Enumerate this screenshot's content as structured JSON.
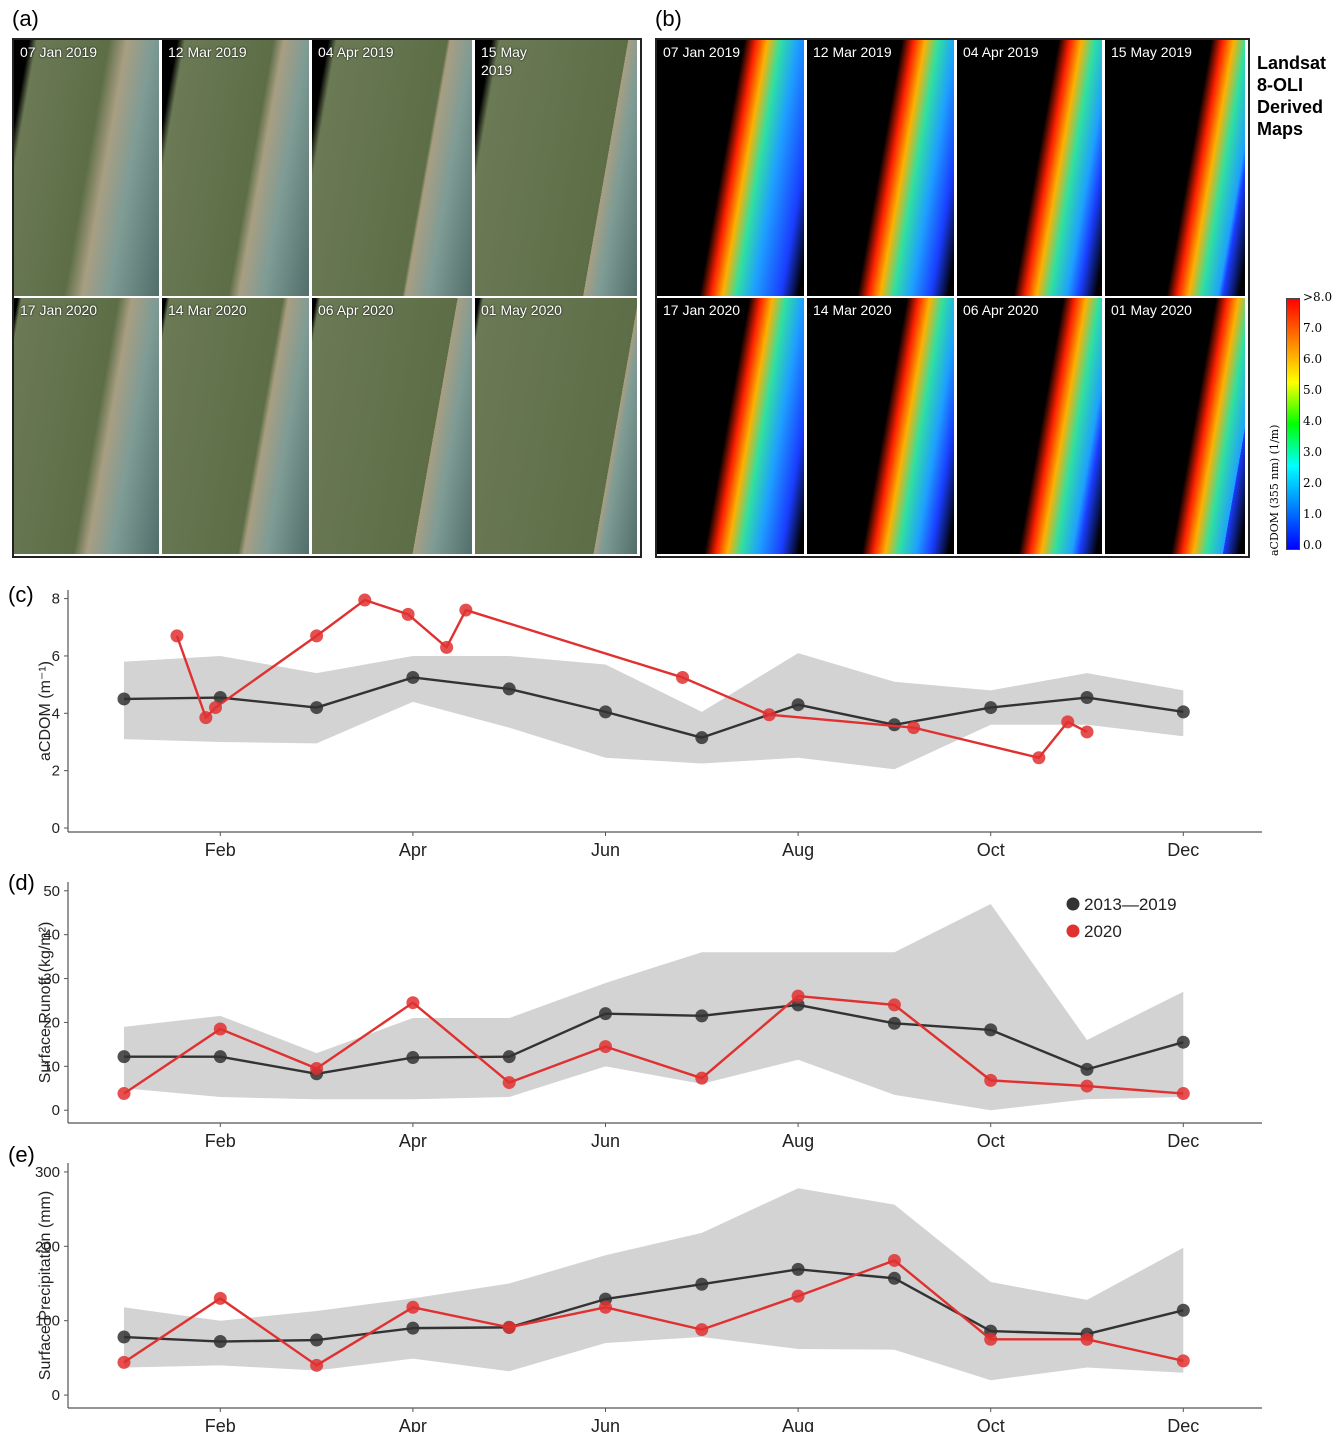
{
  "panel_a": {
    "letter": "(a)",
    "tiles_2019": [
      "07 Jan 2019",
      "12 Mar 2019",
      "04 Apr 2019",
      "15 May\n2019"
    ],
    "tiles_2020": [
      "17 Jan 2020",
      "14 Mar 2020",
      "06 Apr 2020",
      "01 May 2020"
    ]
  },
  "panel_b": {
    "letter": "(b)",
    "tiles_2019": [
      "07 Jan 2019",
      "12 Mar 2019",
      "04 Apr 2019",
      "15 May 2019"
    ],
    "tiles_2020": [
      "17 Jan 2020",
      "14 Mar 2020",
      "06 Apr 2020",
      "01 May 2020"
    ],
    "title_lines": [
      "Landsat",
      "8-OLI",
      "Derived",
      "Maps"
    ],
    "colorbar": {
      "ticks": [
        ">8.0",
        "7.0",
        "6.0",
        "5.0",
        "4.0",
        "3.0",
        "2.0",
        "1.0",
        "0.0"
      ],
      "label": "aCDOM (355 nm) (1/m)",
      "colors": [
        "#ff0000",
        "#ff8000",
        "#ffff00",
        "#00ff00",
        "#00ffff",
        "#0080ff",
        "#0000ff"
      ]
    }
  },
  "colors": {
    "baseline": "#333333",
    "year2020": "#e03030",
    "band": "#d3d3d3"
  },
  "legend": {
    "baseline": "2013—2019",
    "year2020": "2020"
  },
  "chart_data": [
    {
      "panel": "(c)",
      "type": "line",
      "ylabel": "aCDOM (m⁻¹)",
      "xlabel": "",
      "x_ticks": [
        "Feb",
        "Apr",
        "Jun",
        "Aug",
        "Oct",
        "Dec"
      ],
      "ylim": [
        0,
        8.3
      ],
      "y_ticks": [
        0,
        2,
        4,
        6,
        8
      ],
      "band": {
        "x": [
          1,
          2,
          3,
          4,
          5,
          6,
          7,
          8,
          9,
          10,
          11,
          12
        ],
        "low": [
          3.1,
          3.0,
          2.95,
          4.4,
          3.5,
          2.45,
          2.25,
          2.45,
          2.05,
          3.6,
          3.6,
          3.2
        ],
        "high": [
          5.8,
          6.0,
          5.4,
          6.0,
          6.0,
          5.7,
          4.05,
          6.1,
          5.1,
          4.8,
          5.4,
          4.8
        ]
      },
      "series": [
        {
          "name": "2013—2019",
          "x": [
            1,
            2,
            3,
            4,
            5,
            6,
            7,
            8,
            9,
            10,
            11,
            12
          ],
          "y": [
            4.5,
            4.55,
            4.2,
            5.25,
            4.85,
            4.05,
            3.15,
            4.3,
            3.6,
            4.2,
            4.55,
            4.05
          ]
        },
        {
          "name": "2020",
          "x": [
            1.55,
            1.85,
            1.95,
            3.0,
            3.5,
            3.95,
            4.35,
            4.55,
            6.8,
            7.7,
            9.2,
            10.5,
            10.8,
            11.0
          ],
          "y": [
            6.7,
            3.85,
            4.2,
            6.7,
            7.95,
            7.45,
            6.3,
            7.6,
            5.25,
            3.95,
            3.5,
            2.45,
            3.7,
            3.35
          ]
        }
      ]
    },
    {
      "panel": "(d)",
      "type": "line",
      "ylabel": "Surface Runoff (kg/m²)",
      "xlabel": "",
      "x_ticks": [
        "Feb",
        "Apr",
        "Jun",
        "Aug",
        "Oct",
        "Dec"
      ],
      "ylim": [
        -2,
        52
      ],
      "y_ticks": [
        0,
        10,
        20,
        30,
        40,
        50
      ],
      "band": {
        "x": [
          1,
          2,
          3,
          4,
          5,
          6,
          7,
          8,
          9,
          10,
          11,
          12
        ],
        "low": [
          5.0,
          3.0,
          2.5,
          2.5,
          3.0,
          10.0,
          6.0,
          11.5,
          3.5,
          0.0,
          2.5,
          3.0
        ],
        "high": [
          19.0,
          21.5,
          13.0,
          21.0,
          21.0,
          29.0,
          36.0,
          36.0,
          36.0,
          47.0,
          16.0,
          27.0
        ]
      },
      "series": [
        {
          "name": "2013—2019",
          "x": [
            1,
            2,
            3,
            4,
            5,
            6,
            7,
            8,
            9,
            10,
            11,
            12
          ],
          "y": [
            12.2,
            12.2,
            8.3,
            12.0,
            12.2,
            22.0,
            21.5,
            24.0,
            19.8,
            18.3,
            9.3,
            15.5
          ]
        },
        {
          "name": "2020",
          "x": [
            1,
            2,
            3,
            4,
            5,
            6,
            7,
            8,
            9,
            10,
            11,
            12
          ],
          "y": [
            3.8,
            18.5,
            9.5,
            24.5,
            6.3,
            14.5,
            7.3,
            26.0,
            24.0,
            6.8,
            5.5,
            3.8
          ]
        }
      ]
    },
    {
      "panel": "(e)",
      "type": "line",
      "ylabel": "Surface Precipitation (mm)",
      "xlabel": "",
      "x_ticks": [
        "Feb",
        "Apr",
        "Jun",
        "Aug",
        "Oct",
        "Dec"
      ],
      "ylim": [
        -12,
        312
      ],
      "y_ticks": [
        0,
        100,
        200,
        300
      ],
      "band": {
        "x": [
          1,
          2,
          3,
          4,
          5,
          6,
          7,
          8,
          9,
          10,
          11,
          12
        ],
        "low": [
          37,
          40,
          33,
          49,
          32,
          70,
          78,
          62,
          61,
          20,
          37,
          30
        ],
        "high": [
          118,
          100,
          113,
          130,
          150,
          188,
          218,
          278,
          256,
          152,
          128,
          198
        ]
      },
      "series": [
        {
          "name": "2013—2019",
          "x": [
            1,
            2,
            3,
            4,
            5,
            6,
            7,
            8,
            9,
            10,
            11,
            12
          ],
          "y": [
            78,
            72,
            74,
            90,
            91,
            129,
            149,
            169,
            157,
            86,
            82,
            114
          ]
        },
        {
          "name": "2020",
          "x": [
            1,
            2,
            3,
            4,
            5,
            6,
            7,
            8,
            9,
            10,
            11,
            12
          ],
          "y": [
            44,
            130,
            40,
            118,
            91,
            118,
            88,
            133,
            181,
            75,
            75,
            46
          ]
        }
      ]
    }
  ]
}
